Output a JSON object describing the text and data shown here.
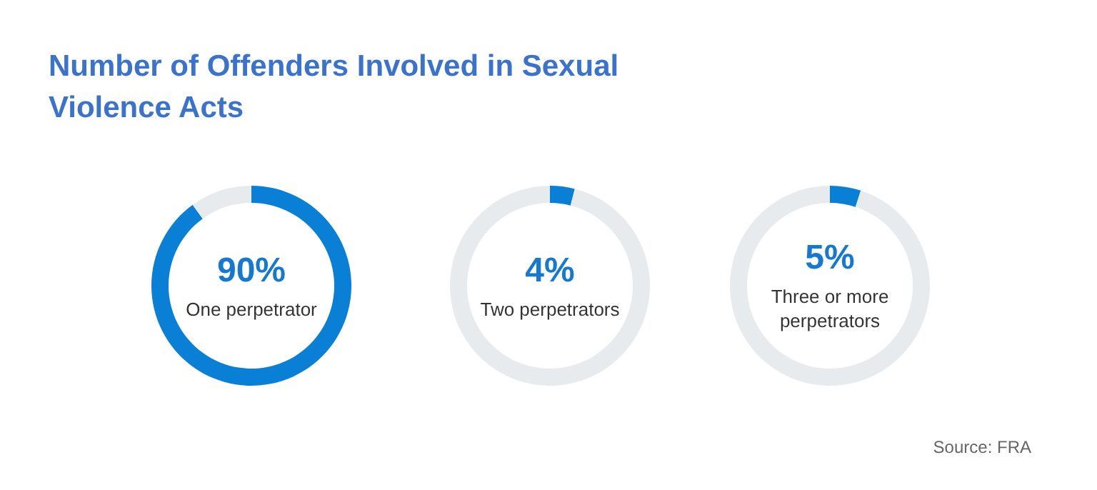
{
  "chart_data": [
    {
      "type": "donut",
      "title": "Number of Offenders Involved in Sexual Violence Acts",
      "categories": [
        "One perpetrator",
        null
      ],
      "values": [
        90,
        10
      ],
      "colors": [
        "#0a7fd6",
        "#e8ebee"
      ],
      "value_labels": [
        "90%",
        null
      ]
    },
    {
      "type": "donut",
      "categories": [
        "Two perpetrators",
        null
      ],
      "values": [
        4,
        96
      ],
      "colors": [
        "#0a7fd6",
        "#e8ebee"
      ],
      "value_labels": [
        "4%",
        null
      ]
    },
    {
      "type": "donut",
      "categories": [
        "Three or more perpetrators",
        null
      ],
      "values": [
        5,
        95
      ],
      "colors": [
        "#0a7fd6",
        "#e8ebee"
      ],
      "value_labels": [
        "5%",
        null
      ],
      "annotations": [
        "Source: FRA"
      ]
    }
  ]
}
